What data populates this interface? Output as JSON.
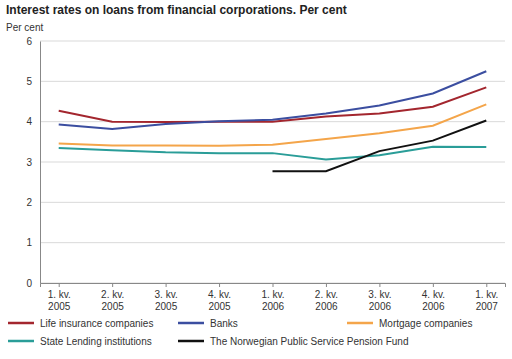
{
  "chart_data": {
    "type": "line",
    "title": "Interest rates on loans from financial corporations. Per cent",
    "y_label": "Per cent",
    "categories": [
      "1. kv. 2005",
      "2. kv. 2005",
      "3. kv. 2005",
      "4. kv. 2005",
      "1. kv. 2006",
      "2. kv. 2006",
      "3. kv. 2006",
      "4. kv. 2006",
      "1. kv. 2007"
    ],
    "series": [
      {
        "name": "Life insurance companies",
        "color": "#a3262e",
        "values": [
          4.27,
          4.0,
          3.99,
          4.0,
          4.0,
          4.13,
          4.2,
          4.37,
          4.85
        ]
      },
      {
        "name": "Banks",
        "color": "#3b4ea0",
        "values": [
          3.93,
          3.82,
          3.94,
          4.01,
          4.05,
          4.2,
          4.4,
          4.7,
          5.25
        ]
      },
      {
        "name": "Mortgage companies",
        "color": "#f4a54a",
        "values": [
          3.46,
          3.41,
          3.41,
          3.4,
          3.43,
          3.57,
          3.71,
          3.9,
          4.43
        ]
      },
      {
        "name": "State Lending institutions",
        "color": "#2a9d98",
        "values": [
          3.35,
          3.29,
          3.24,
          3.22,
          3.22,
          3.06,
          3.17,
          3.38,
          3.37
        ]
      },
      {
        "name": "The Norwegian Public Service Pension Fund",
        "color": "#111111",
        "values": [
          null,
          null,
          null,
          null,
          2.77,
          2.77,
          3.27,
          3.53,
          4.03
        ]
      }
    ],
    "ylim": [
      0,
      6
    ],
    "yticks": [
      0,
      1,
      2,
      3,
      4,
      5,
      6
    ],
    "grid": true,
    "legend": "bottom"
  }
}
